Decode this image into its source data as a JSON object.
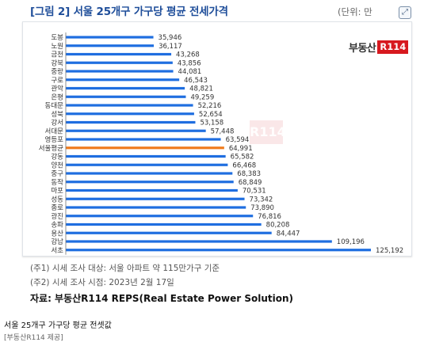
{
  "header": {
    "title": "[그림 2] 서울 25개구 가구당 평균 전세가격",
    "unit": "(단위: 만",
    "corner_icon": "expand-icon"
  },
  "logo": {
    "text": "부동산",
    "badge": "R114"
  },
  "watermark": "R114",
  "notes": [
    "(주1) 시세 조사 대상: 서울 아파트 약 115만가구 기준",
    "(주2) 시세 조사 시점: 2023년 2월 17일"
  ],
  "source": "자료: 부동산R114 REPS(Real Estate Power Solution)",
  "caption": "서울 25개구 가구당 평균 전셋값",
  "credit": "[부동산R114 제공]",
  "colors": {
    "bar": "#1f6ee0",
    "highlight": "#f07c1e",
    "title": "#1f4e9a"
  },
  "chart_data": {
    "type": "bar",
    "orientation": "horizontal",
    "title": "[그림 2] 서울 25개구 가구당 평균 전세가격",
    "categories": [
      "도봉",
      "노원",
      "금천",
      "강북",
      "중랑",
      "구로",
      "관악",
      "은평",
      "동대문",
      "성북",
      "강서",
      "서대문",
      "영등포",
      "서울평균",
      "강동",
      "양천",
      "중구",
      "동작",
      "마포",
      "성동",
      "종로",
      "광진",
      "송파",
      "용산",
      "강남",
      "서초"
    ],
    "values": [
      35946,
      36117,
      43268,
      43856,
      44081,
      46543,
      48821,
      49259,
      52216,
      52654,
      53158,
      57448,
      63594,
      64991,
      65582,
      66468,
      68383,
      68849,
      70531,
      73342,
      73890,
      76816,
      80208,
      84447,
      109196,
      125192
    ],
    "value_labels": [
      "35,946",
      "36,117",
      "43,268",
      "43,856",
      "44,081",
      "46,543",
      "48,821",
      "49,259",
      "52,216",
      "52,654",
      "53,158",
      "57,448",
      "63,594",
      "64,991",
      "65,582",
      "66,468",
      "68,383",
      "68,849",
      "70,531",
      "73,342",
      "73,890",
      "76,816",
      "80,208",
      "84,447",
      "109,196",
      "125,192"
    ],
    "highlight": "서울평균",
    "xlim": [
      0,
      125192
    ],
    "grid": false,
    "legend": "none"
  }
}
